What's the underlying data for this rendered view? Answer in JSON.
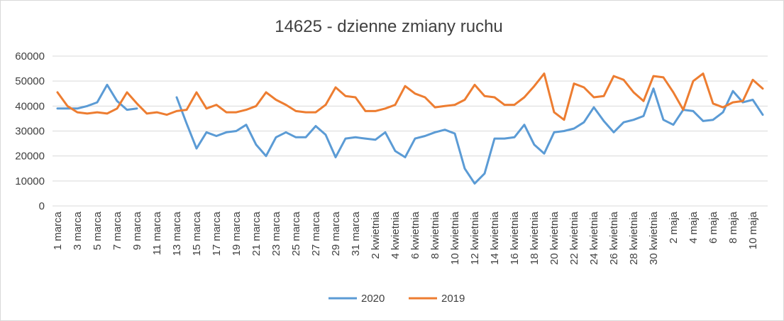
{
  "chart_data": {
    "type": "line",
    "title": "14625 - dzienne zmiany ruchu",
    "xlabel": "",
    "ylabel": "",
    "ylim": [
      0,
      60000
    ],
    "yticks": [
      0,
      10000,
      20000,
      30000,
      40000,
      50000,
      60000
    ],
    "grid": true,
    "legend_position": "bottom",
    "x_tick_labels": [
      "1 marca",
      "3 marca",
      "5 marca",
      "7 marca",
      "9 marca",
      "11 marca",
      "13 marca",
      "15 marca",
      "17 marca",
      "19 marca",
      "21 marca",
      "23 marca",
      "25 marca",
      "27 marca",
      "29 marca",
      "31 marca",
      "2 kwietnia",
      "4 kwietnia",
      "6 kwietnia",
      "8 kwietnia",
      "10 kwietnia",
      "12 kwietnia",
      "14 kwietnia",
      "16 kwietnia",
      "18 kwietnia",
      "20 kwietnia",
      "22 kwietnia",
      "24 kwietnia",
      "26 kwietnia",
      "28 kwietnia",
      "30 kwietnia",
      "2 maja",
      "4 maja",
      "6 maja",
      "8 maja",
      "10 maja"
    ],
    "series": [
      {
        "name": "2020",
        "color": "#5B9BD5",
        "values": [
          39000,
          39000,
          39000,
          40000,
          41500,
          48500,
          42000,
          38500,
          39000,
          null,
          null,
          null,
          43500,
          33000,
          23000,
          29500,
          28000,
          29500,
          30000,
          32500,
          24500,
          20000,
          27500,
          29500,
          27500,
          27500,
          32000,
          28500,
          19500,
          27000,
          27500,
          27000,
          26500,
          29500,
          22000,
          19500,
          27000,
          28000,
          29500,
          30500,
          29000,
          15000,
          9000,
          13000,
          27000,
          27000,
          27500,
          32500,
          24500,
          21000,
          29500,
          30000,
          31000,
          33500,
          39500,
          34000,
          29500,
          33500,
          34500,
          36000,
          47000,
          34500,
          32500,
          38500,
          38000,
          34000,
          34500,
          37500,
          46000,
          41500,
          42500,
          36500
        ]
      },
      {
        "name": "2019",
        "color": "#ED7D31",
        "values": [
          45500,
          40000,
          37500,
          37000,
          37500,
          37000,
          39000,
          45500,
          41000,
          37000,
          37500,
          36500,
          38000,
          38500,
          45500,
          39000,
          40500,
          37500,
          37500,
          38500,
          40000,
          45500,
          42500,
          40500,
          38000,
          37500,
          37500,
          40500,
          47500,
          44000,
          43500,
          38000,
          38000,
          39000,
          40500,
          48000,
          45000,
          43500,
          39500,
          40000,
          40500,
          42500,
          48500,
          44000,
          43500,
          40500,
          40500,
          43500,
          48000,
          53000,
          37500,
          34500,
          49000,
          47500,
          43500,
          44000,
          52000,
          50500,
          45500,
          42000,
          52000,
          51500,
          45500,
          38500,
          50000,
          53000,
          41000,
          39500,
          41500,
          42000,
          50500,
          47000
        ]
      }
    ]
  }
}
